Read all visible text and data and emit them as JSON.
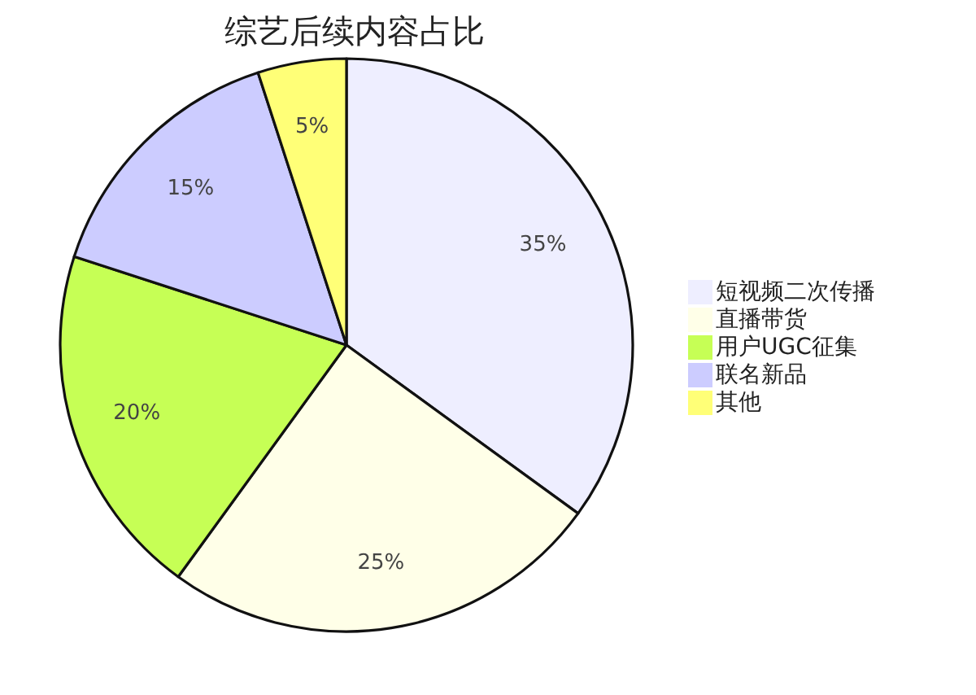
{
  "chart_data": {
    "type": "pie",
    "title": "综艺后续内容占比",
    "categories": [
      "短视频二次传播",
      "直播带货",
      "用户UGC征集",
      "联名新品",
      "其他"
    ],
    "values": [
      35,
      25,
      20,
      15,
      5
    ],
    "colors": [
      "#eeeeff",
      "#ffffe8",
      "#c6ff55",
      "#ccccff",
      "#ffff77"
    ],
    "value_labels": [
      "35%",
      "25%",
      "20%",
      "15%",
      "5%"
    ],
    "legend": "right"
  }
}
